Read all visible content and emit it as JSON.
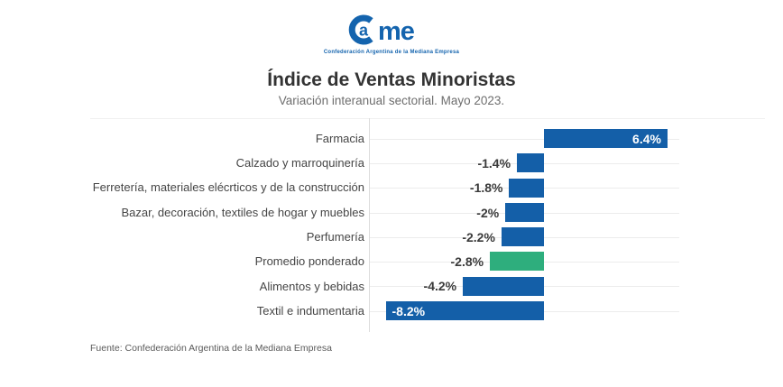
{
  "logo": {
    "letter_inside_c": "a",
    "letters_me": "me",
    "tagline": "Confederación Argentina de la Mediana Empresa",
    "color": "#1464AE"
  },
  "header": {
    "title": "Índice de Ventas Minoristas",
    "subtitle": "Variación interanual sectorial. Mayo 2023."
  },
  "chart_data": {
    "type": "bar",
    "orientation": "horizontal",
    "title": "Índice de Ventas Minoristas",
    "subtitle": "Variación interanual sectorial. Mayo 2023.",
    "unit": "%",
    "categories": [
      "Farmacia",
      "Calzado y marroquinería",
      "Ferretería, materiales elécrticos y de la construcción",
      "Bazar, decoración, textiles de hogar y muebles",
      "Perfumería",
      "Promedio ponderado",
      "Alimentos y bebidas",
      "Textil e indumentaria"
    ],
    "values": [
      6.4,
      -1.4,
      -1.8,
      -2,
      -2.2,
      -2.8,
      -4.2,
      -8.2
    ],
    "value_labels": [
      "6.4%",
      "-1.4%",
      "-1.8%",
      "-2%",
      "-2.2%",
      "-2.8%",
      "-4.2%",
      "-8.2%"
    ],
    "highlight_index": 5,
    "bar_color": "#145FA8",
    "highlight_color": "#2EAE7D",
    "xlim": [
      -9.1,
      7.0
    ],
    "grid": false,
    "legend": false
  },
  "footer": {
    "source": "Fuente: Confederación Argentina de la Mediana Empresa"
  }
}
